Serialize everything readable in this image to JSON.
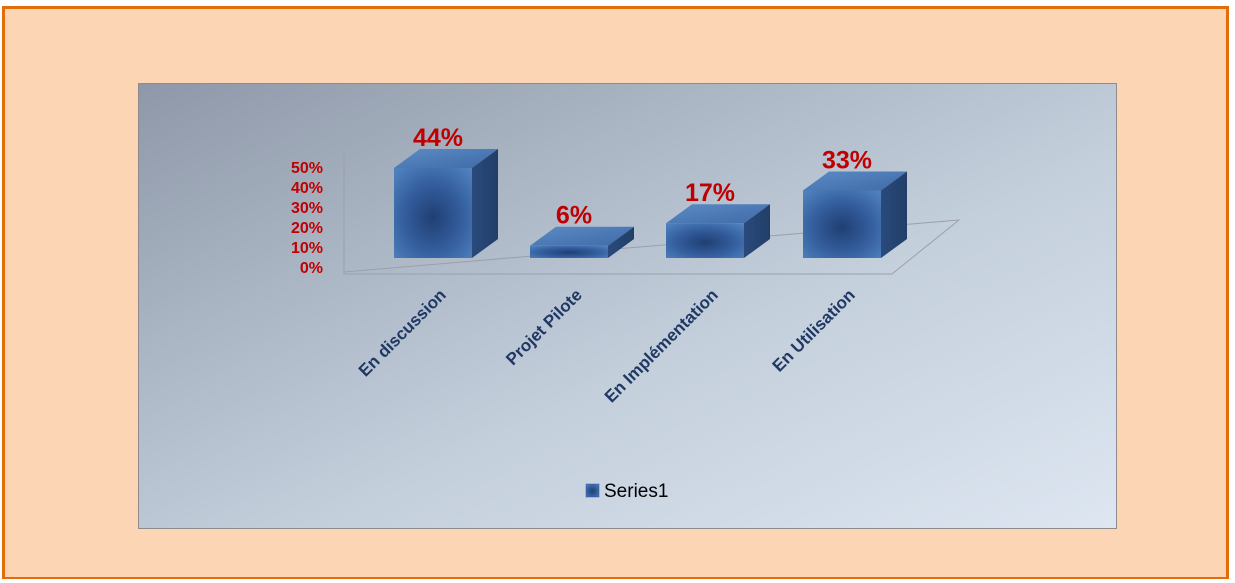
{
  "chart_data": {
    "type": "bar",
    "style": "3d-column",
    "categories": [
      "En discussion",
      "Projet Pilote",
      "En Implémentation",
      "En Utilisation"
    ],
    "series": [
      {
        "name": "Series1",
        "values": [
          0.44,
          0.06,
          0.17,
          0.33
        ]
      }
    ],
    "data_labels": [
      "44%",
      "6%",
      "17%",
      "33%"
    ],
    "y_ticks": [
      "0%",
      "10%",
      "20%",
      "30%",
      "40%",
      "50%"
    ],
    "ylim": [
      0,
      0.5
    ],
    "title": "",
    "xlabel": "",
    "ylabel": "",
    "legend": {
      "position": "bottom",
      "entries": [
        "Series1"
      ]
    },
    "grid": false,
    "colors": {
      "bar": "#4f81bd",
      "bar_dark": "#2f5597",
      "labels": "#c00000",
      "category_text": "#1f3864",
      "frame_fill": "#fcd5b4",
      "frame_border": "#e46c0a"
    }
  }
}
